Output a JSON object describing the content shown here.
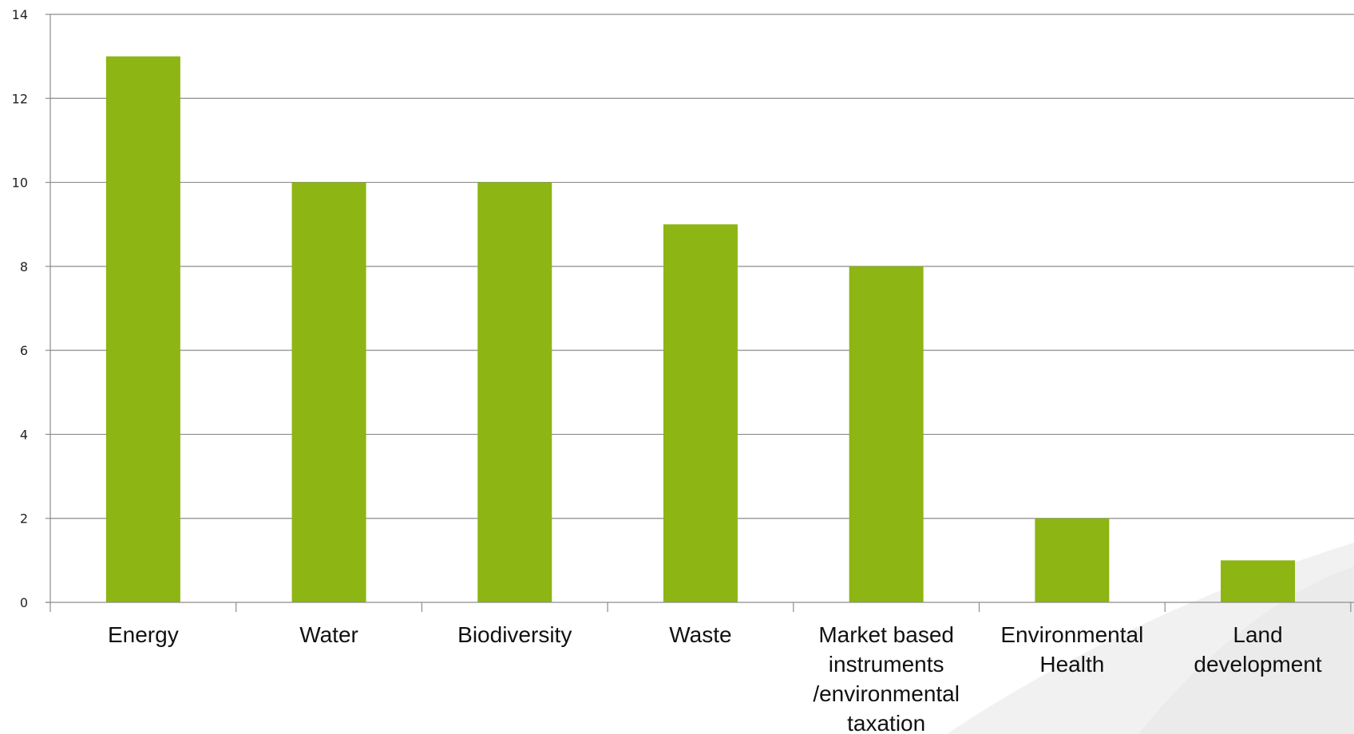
{
  "chart_data": {
    "type": "bar",
    "title": "",
    "xlabel": "",
    "ylabel": "",
    "categories": [
      "Energy",
      "Water",
      "Biodiversity",
      "Waste",
      "Market based instruments /environmental taxation",
      "Environmental Health",
      "Land development"
    ],
    "category_lines": [
      [
        "Energy"
      ],
      [
        "Water"
      ],
      [
        "Biodiversity"
      ],
      [
        "Waste"
      ],
      [
        "Market based",
        "instruments",
        "/environmental",
        "taxation"
      ],
      [
        "Environmental",
        "Health"
      ],
      [
        "Land",
        "development"
      ]
    ],
    "values": [
      13,
      10,
      10,
      9,
      8,
      2,
      1
    ],
    "ylim": [
      0,
      14
    ],
    "yticks": [
      0,
      2,
      4,
      6,
      8,
      10,
      12,
      14
    ],
    "grid": true,
    "legend": "none",
    "colors": {
      "bar": "#8db513",
      "grid": "#8c8c8c",
      "axis": "#8c8c8c",
      "watermark": "#f1f1f1"
    }
  }
}
